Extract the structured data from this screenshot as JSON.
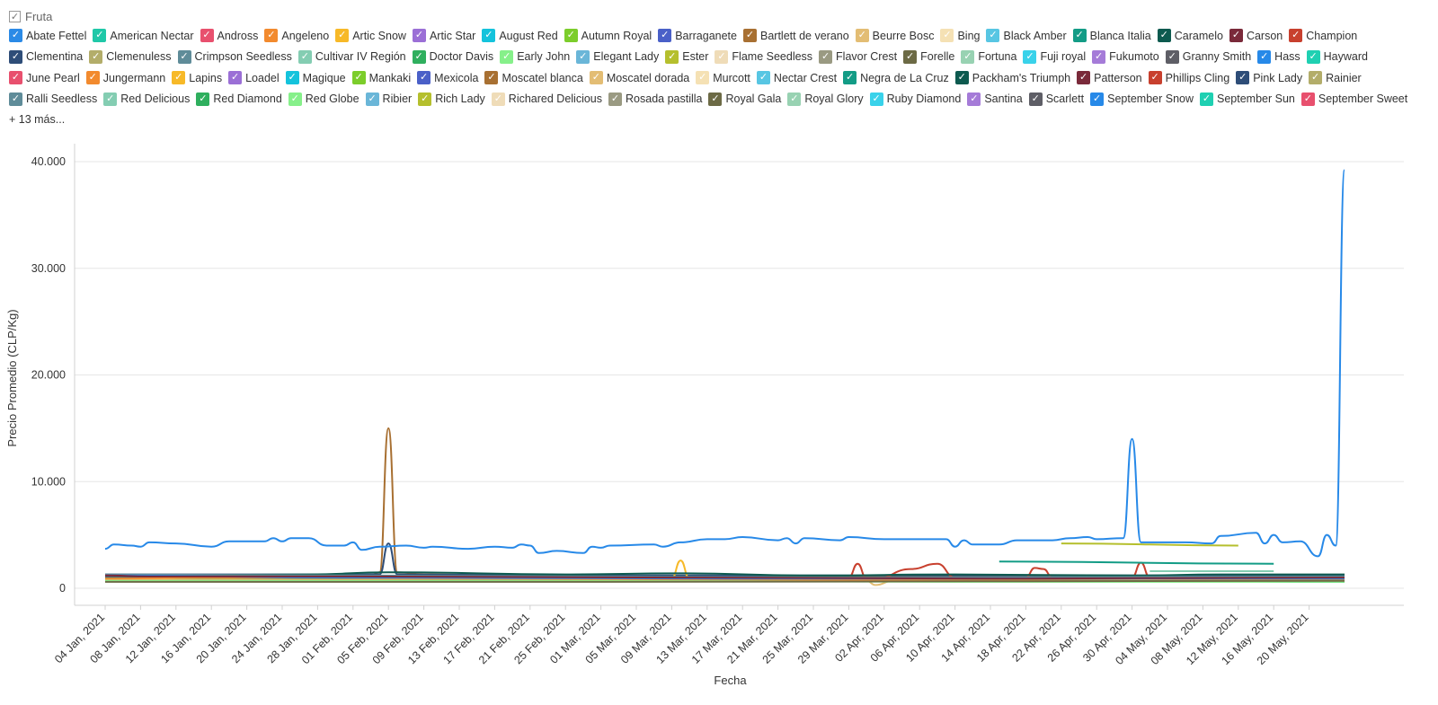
{
  "legend": {
    "title": "Fruta",
    "more": "+ 13 más...",
    "items": [
      {
        "name": "Abate Fettel",
        "color": "#2b8ae6"
      },
      {
        "name": "American Nectar",
        "color": "#1fc8a8"
      },
      {
        "name": "Andross",
        "color": "#e8506e"
      },
      {
        "name": "Angeleno",
        "color": "#f28a2e"
      },
      {
        "name": "Artic Snow",
        "color": "#f7b928"
      },
      {
        "name": "Artic Star",
        "color": "#9b6fd6"
      },
      {
        "name": "August Red",
        "color": "#14c3dc"
      },
      {
        "name": "Autumn Royal",
        "color": "#7ccd2b"
      },
      {
        "name": "Barraganete",
        "color": "#4a60c8"
      },
      {
        "name": "Bartlett de verano",
        "color": "#a87032"
      },
      {
        "name": "Beurre Bosc",
        "color": "#e3bd74"
      },
      {
        "name": "Bing",
        "color": "#f5e1b4"
      },
      {
        "name": "Black Amber",
        "color": "#58c6e3"
      },
      {
        "name": "Blanca Italia",
        "color": "#139c86"
      },
      {
        "name": "Caramelo",
        "color": "#0d5a4f"
      },
      {
        "name": "Carson",
        "color": "#7a2a3a"
      },
      {
        "name": "Champion",
        "color": "#c8402e"
      },
      {
        "name": "Clementina",
        "color": "#2e4d78"
      },
      {
        "name": "Clemenuless",
        "color": "#b3ad6a"
      },
      {
        "name": "Crimpson Seedless",
        "color": "#5f8c99"
      },
      {
        "name": "Cultivar IV Región",
        "color": "#84cdb2"
      },
      {
        "name": "Doctor Davis",
        "color": "#2faf5e"
      },
      {
        "name": "Early John",
        "color": "#86f08a"
      },
      {
        "name": "Elegant Lady",
        "color": "#6ab6d8"
      },
      {
        "name": "Ester",
        "color": "#b5bf2d"
      },
      {
        "name": "Flame Seedless",
        "color": "#efdcb8"
      },
      {
        "name": "Flavor Crest",
        "color": "#9a9a82"
      },
      {
        "name": "Forelle",
        "color": "#6c6a45"
      },
      {
        "name": "Fortuna",
        "color": "#98d2b2"
      },
      {
        "name": "Fuji royal",
        "color": "#39d2ea"
      },
      {
        "name": "Fukumoto",
        "color": "#a57bd8"
      },
      {
        "name": "Granny Smith",
        "color": "#5e5e66"
      },
      {
        "name": "Hass",
        "color": "#2789e8"
      },
      {
        "name": "Hayward",
        "color": "#1fd0b2"
      },
      {
        "name": "June Pearl",
        "color": "#e8506e"
      },
      {
        "name": "Jungermann",
        "color": "#f28a2e"
      },
      {
        "name": "Lapins",
        "color": "#f7b928"
      },
      {
        "name": "Loadel",
        "color": "#9b6fd6"
      },
      {
        "name": "Magique",
        "color": "#14c3dc"
      },
      {
        "name": "Mankaki",
        "color": "#7ccd2b"
      },
      {
        "name": "Mexicola",
        "color": "#4a60c8"
      },
      {
        "name": "Moscatel blanca",
        "color": "#a87032"
      },
      {
        "name": "Moscatel dorada",
        "color": "#e3bd74"
      },
      {
        "name": "Murcott",
        "color": "#f5e1b4"
      },
      {
        "name": "Nectar Crest",
        "color": "#58c6e3"
      },
      {
        "name": "Negra de La Cruz",
        "color": "#139c86"
      },
      {
        "name": "Packham's Triumph",
        "color": "#0d5a4f"
      },
      {
        "name": "Patterson",
        "color": "#7a2a3a"
      },
      {
        "name": "Phillips Cling",
        "color": "#c8402e"
      },
      {
        "name": "Pink Lady",
        "color": "#2e4d78"
      },
      {
        "name": "Rainier",
        "color": "#b3ad6a"
      },
      {
        "name": "Ralli Seedless",
        "color": "#5f8c99"
      },
      {
        "name": "Red Delicious",
        "color": "#84cdb2"
      },
      {
        "name": "Red Diamond",
        "color": "#2faf5e"
      },
      {
        "name": "Red Globe",
        "color": "#86f08a"
      },
      {
        "name": "Ribier",
        "color": "#6ab6d8"
      },
      {
        "name": "Rich Lady",
        "color": "#b5bf2d"
      },
      {
        "name": "Richared Delicious",
        "color": "#efdcb8"
      },
      {
        "name": "Rosada pastilla",
        "color": "#9a9a82"
      },
      {
        "name": "Royal Gala",
        "color": "#6c6a45"
      },
      {
        "name": "Royal Glory",
        "color": "#98d2b2"
      },
      {
        "name": "Ruby Diamond",
        "color": "#39d2ea"
      },
      {
        "name": "Santina",
        "color": "#a57bd8"
      },
      {
        "name": "Scarlett",
        "color": "#5e5e66"
      },
      {
        "name": "September Snow",
        "color": "#2789e8"
      },
      {
        "name": "September Sun",
        "color": "#1fd0b2"
      },
      {
        "name": "September Sweet",
        "color": "#e8506e"
      }
    ]
  },
  "chart_data": {
    "type": "line",
    "xlabel": "Fecha",
    "ylabel": "Precio Promedio (CLP/Kg)",
    "ylim": [
      0,
      40000
    ],
    "yticks": [
      0,
      10000,
      20000,
      30000,
      40000
    ],
    "ytick_labels": [
      "0",
      "10.000",
      "20.000",
      "30.000",
      "40.000"
    ],
    "grid": true,
    "x_start": "2021-01-04",
    "x_end": "2021-05-24",
    "xtick_labels": [
      "04 Jan, 2021",
      "08 Jan, 2021",
      "12 Jan, 2021",
      "16 Jan, 2021",
      "20 Jan, 2021",
      "24 Jan, 2021",
      "28 Jan, 2021",
      "01 Feb, 2021",
      "05 Feb, 2021",
      "09 Feb, 2021",
      "13 Feb, 2021",
      "17 Feb, 2021",
      "21 Feb, 2021",
      "25 Feb, 2021",
      "01 Mar, 2021",
      "05 Mar, 2021",
      "09 Mar, 2021",
      "13 Mar, 2021",
      "17 Mar, 2021",
      "21 Mar, 2021",
      "25 Mar, 2021",
      "29 Mar, 2021",
      "02 Apr, 2021",
      "06 Apr, 2021",
      "10 Apr, 2021",
      "14 Apr, 2021",
      "18 Apr, 2021",
      "22 Apr, 2021",
      "26 Apr, 2021",
      "30 Apr, 2021",
      "04 May, 2021",
      "08 May, 2021",
      "12 May, 2021",
      "16 May, 2021",
      "20 May, 2021"
    ],
    "series": [
      {
        "name": "Hass",
        "color": "#2789e8",
        "points": [
          [
            "2021-01-04",
            3700
          ],
          [
            "2021-01-05",
            4100
          ],
          [
            "2021-01-07",
            4000
          ],
          [
            "2021-01-08",
            3900
          ],
          [
            "2021-01-09",
            4300
          ],
          [
            "2021-01-12",
            4200
          ],
          [
            "2021-01-16",
            3900
          ],
          [
            "2021-01-18",
            4400
          ],
          [
            "2021-01-22",
            4400
          ],
          [
            "2021-01-23",
            4700
          ],
          [
            "2021-01-24",
            4400
          ],
          [
            "2021-01-25",
            4700
          ],
          [
            "2021-01-27",
            4700
          ],
          [
            "2021-01-29",
            4000
          ],
          [
            "2021-01-31",
            4000
          ],
          [
            "2021-02-01",
            4300
          ],
          [
            "2021-02-02",
            3600
          ],
          [
            "2021-02-04",
            3900
          ],
          [
            "2021-02-07",
            4000
          ],
          [
            "2021-02-09",
            3800
          ],
          [
            "2021-02-10",
            3900
          ],
          [
            "2021-02-14",
            3700
          ],
          [
            "2021-02-17",
            3900
          ],
          [
            "2021-02-19",
            3800
          ],
          [
            "2021-02-20",
            4100
          ],
          [
            "2021-02-21",
            4000
          ],
          [
            "2021-02-22",
            3300
          ],
          [
            "2021-02-24",
            3500
          ],
          [
            "2021-02-27",
            3300
          ],
          [
            "2021-02-28",
            3900
          ],
          [
            "2021-03-01",
            3800
          ],
          [
            "2021-03-02",
            4000
          ],
          [
            "2021-03-07",
            4100
          ],
          [
            "2021-03-08",
            3900
          ],
          [
            "2021-03-10",
            4300
          ],
          [
            "2021-03-13",
            4600
          ],
          [
            "2021-03-15",
            4600
          ],
          [
            "2021-03-17",
            4800
          ],
          [
            "2021-03-21",
            4500
          ],
          [
            "2021-03-22",
            4700
          ],
          [
            "2021-03-23",
            4200
          ],
          [
            "2021-03-24",
            4700
          ],
          [
            "2021-03-28",
            4500
          ],
          [
            "2021-03-29",
            4800
          ],
          [
            "2021-04-02",
            4600
          ],
          [
            "2021-04-06",
            4600
          ],
          [
            "2021-04-09",
            4600
          ],
          [
            "2021-04-10",
            3900
          ],
          [
            "2021-04-11",
            4500
          ],
          [
            "2021-04-12",
            4100
          ],
          [
            "2021-04-15",
            4100
          ],
          [
            "2021-04-17",
            4500
          ],
          [
            "2021-04-21",
            4500
          ],
          [
            "2021-04-23",
            4700
          ],
          [
            "2021-04-25",
            4800
          ],
          [
            "2021-04-26",
            4600
          ],
          [
            "2021-04-29",
            4700
          ],
          [
            "2021-04-30",
            14000
          ],
          [
            "2021-05-01",
            4300
          ],
          [
            "2021-05-04",
            4300
          ],
          [
            "2021-05-06",
            4300
          ],
          [
            "2021-05-09",
            4200
          ],
          [
            "2021-05-10",
            4900
          ],
          [
            "2021-05-14",
            5200
          ],
          [
            "2021-05-15",
            4200
          ],
          [
            "2021-05-16",
            5000
          ],
          [
            "2021-05-17",
            4300
          ],
          [
            "2021-05-19",
            4400
          ],
          [
            "2021-05-21",
            3000
          ],
          [
            "2021-05-22",
            5000
          ],
          [
            "2021-05-23",
            4000
          ],
          [
            "2021-05-24",
            39200
          ]
        ]
      },
      {
        "name": "Moscatel blanca",
        "color": "#a87032",
        "points": [
          [
            "2021-01-04",
            1100
          ],
          [
            "2021-01-20",
            1100
          ],
          [
            "2021-02-03",
            1200
          ],
          [
            "2021-02-04",
            1500
          ],
          [
            "2021-02-05",
            15000
          ],
          [
            "2021-02-06",
            1500
          ],
          [
            "2021-02-09",
            1300
          ],
          [
            "2021-02-20",
            1200
          ],
          [
            "2021-03-10",
            1100
          ],
          [
            "2021-04-10",
            1100
          ],
          [
            "2021-05-24",
            1100
          ]
        ]
      },
      {
        "name": "Pink Lady",
        "color": "#2e4d78",
        "points": [
          [
            "2021-01-04",
            1300
          ],
          [
            "2021-02-04",
            1300
          ],
          [
            "2021-02-05",
            4200
          ],
          [
            "2021-02-06",
            1300
          ],
          [
            "2021-03-01",
            1200
          ],
          [
            "2021-04-01",
            1200
          ],
          [
            "2021-05-24",
            1200
          ]
        ]
      },
      {
        "name": "Artic Snow",
        "color": "#f7b928",
        "points": [
          [
            "2021-01-04",
            900
          ],
          [
            "2021-01-20",
            900
          ],
          [
            "2021-02-20",
            800
          ],
          [
            "2021-03-09",
            900
          ],
          [
            "2021-03-10",
            2600
          ],
          [
            "2021-03-11",
            900
          ],
          [
            "2021-04-10",
            900
          ],
          [
            "2021-05-24",
            900
          ]
        ]
      },
      {
        "name": "Champion",
        "color": "#c8402e",
        "points": [
          [
            "2021-01-04",
            1000
          ],
          [
            "2021-03-01",
            1000
          ],
          [
            "2021-03-29",
            1000
          ],
          [
            "2021-03-30",
            2300
          ],
          [
            "2021-03-31",
            900
          ],
          [
            "2021-04-01",
            900
          ],
          [
            "2021-04-05",
            1800
          ],
          [
            "2021-04-08",
            2300
          ],
          [
            "2021-04-10",
            1000
          ],
          [
            "2021-04-18",
            1000
          ],
          [
            "2021-04-19",
            1900
          ],
          [
            "2021-04-20",
            1800
          ],
          [
            "2021-04-21",
            1000
          ],
          [
            "2021-04-30",
            1000
          ],
          [
            "2021-05-01",
            2400
          ],
          [
            "2021-05-02",
            1000
          ],
          [
            "2021-05-24",
            1000
          ]
        ]
      },
      {
        "name": "Rich Lady",
        "color": "#b5bf2d",
        "points": [
          [
            "2021-04-22",
            4200
          ],
          [
            "2021-05-12",
            4000
          ]
        ]
      },
      {
        "name": "Blanca Italia",
        "color": "#139c86",
        "points": [
          [
            "2021-04-15",
            2500
          ],
          [
            "2021-05-16",
            2300
          ]
        ]
      },
      {
        "name": "Red Delicious",
        "color": "#84cdb2",
        "points": [
          [
            "2021-05-02",
            1600
          ],
          [
            "2021-05-16",
            1600
          ]
        ]
      },
      {
        "name": "Packham's Triumph",
        "color": "#0d5a4f",
        "points": [
          [
            "2021-01-04",
            1200
          ],
          [
            "2021-01-27",
            1300
          ],
          [
            "2021-02-05",
            1500
          ],
          [
            "2021-02-25",
            1300
          ],
          [
            "2021-03-10",
            1400
          ],
          [
            "2021-03-25",
            1200
          ],
          [
            "2021-04-10",
            1300
          ],
          [
            "2021-04-30",
            1200
          ],
          [
            "2021-05-10",
            1300
          ],
          [
            "2021-05-24",
            1300
          ]
        ]
      },
      {
        "name": "Negra de La Cruz",
        "color": "#139c86",
        "points": [
          [
            "2021-01-04",
            1000
          ],
          [
            "2021-02-10",
            900
          ],
          [
            "2021-03-15",
            900
          ],
          [
            "2021-04-20",
            800
          ],
          [
            "2021-05-24",
            600
          ]
        ]
      },
      {
        "name": "Beurre Bosc",
        "color": "#e3bd74",
        "points": [
          [
            "2021-01-04",
            800
          ],
          [
            "2021-03-01",
            700
          ],
          [
            "2021-03-31",
            700
          ],
          [
            "2021-04-01",
            300
          ],
          [
            "2021-04-03",
            700
          ],
          [
            "2021-05-24",
            800
          ]
        ]
      },
      {
        "name": "Granny Smith",
        "color": "#5e5e66",
        "points": [
          [
            "2021-01-04",
            1100
          ],
          [
            "2021-02-15",
            1000
          ],
          [
            "2021-04-01",
            900
          ],
          [
            "2021-05-24",
            1000
          ]
        ]
      },
      {
        "name": "Crimpson Seedless",
        "color": "#5f8c99",
        "points": [
          [
            "2021-01-04",
            1300
          ],
          [
            "2021-02-01",
            1200
          ],
          [
            "2021-03-01",
            1100
          ],
          [
            "2021-04-01",
            1000
          ],
          [
            "2021-05-24",
            1100
          ]
        ]
      },
      {
        "name": "Angeleno",
        "color": "#f28a2e",
        "points": [
          [
            "2021-01-04",
            900
          ],
          [
            "2021-01-15",
            1000
          ],
          [
            "2021-02-15",
            900
          ],
          [
            "2021-03-20",
            800
          ],
          [
            "2021-05-01",
            700
          ],
          [
            "2021-05-24",
            800
          ]
        ]
      },
      {
        "name": "Red Globe",
        "color": "#86f08a",
        "points": [
          [
            "2021-01-04",
            700
          ],
          [
            "2021-02-20",
            700
          ],
          [
            "2021-04-10",
            600
          ],
          [
            "2021-05-24",
            600
          ]
        ]
      },
      {
        "name": "Royal Gala",
        "color": "#6c6a45",
        "points": [
          [
            "2021-01-04",
            600
          ],
          [
            "2021-03-01",
            600
          ],
          [
            "2021-05-24",
            700
          ]
        ]
      },
      {
        "name": "Abate Fettel",
        "color": "#2b8ae6",
        "points": [
          [
            "2021-01-04",
            1200
          ],
          [
            "2021-02-01",
            1000
          ],
          [
            "2021-03-15",
            900
          ],
          [
            "2021-05-24",
            900
          ]
        ]
      },
      {
        "name": "Carson",
        "color": "#7a2a3a",
        "points": [
          [
            "2021-01-04",
            1200
          ],
          [
            "2021-01-09",
            1100
          ],
          [
            "2021-02-01",
            1100
          ],
          [
            "2021-04-15",
            900
          ],
          [
            "2021-05-24",
            1000
          ]
        ]
      }
    ]
  }
}
